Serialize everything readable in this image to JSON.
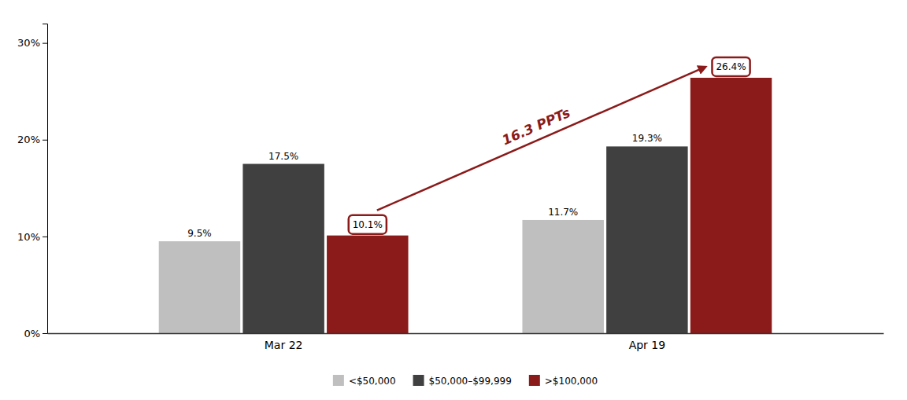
{
  "chart_data": {
    "type": "bar",
    "categories": [
      "Mar 22",
      "Apr 19"
    ],
    "series": [
      {
        "name": "<$50,000",
        "color": "#c0bfbf",
        "values": [
          9.5,
          11.7
        ],
        "value_labels": [
          "9.5%",
          "11.7%"
        ]
      },
      {
        "name": "$50,000–$99,999",
        "color": "#404040",
        "values": [
          17.5,
          19.3
        ],
        "value_labels": [
          "17.5%",
          "19.3%"
        ]
      },
      {
        "name": ">​$100,000",
        "color": "#8b1a1a",
        "values": [
          10.1,
          26.4
        ],
        "value_labels": [
          "10.1%",
          "26.4%"
        ]
      }
    ],
    "ylim": [
      0,
      32
    ],
    "yticks": [
      {
        "value": 0,
        "label": "0%"
      },
      {
        "value": 10,
        "label": "10%"
      },
      {
        "value": 20,
        "label": "20%"
      },
      {
        "value": 30,
        "label": "30%"
      }
    ],
    "annotations": [
      "16.3 PPTs"
    ],
    "data_labels": true,
    "grid": false,
    "legend": "bottom"
  }
}
